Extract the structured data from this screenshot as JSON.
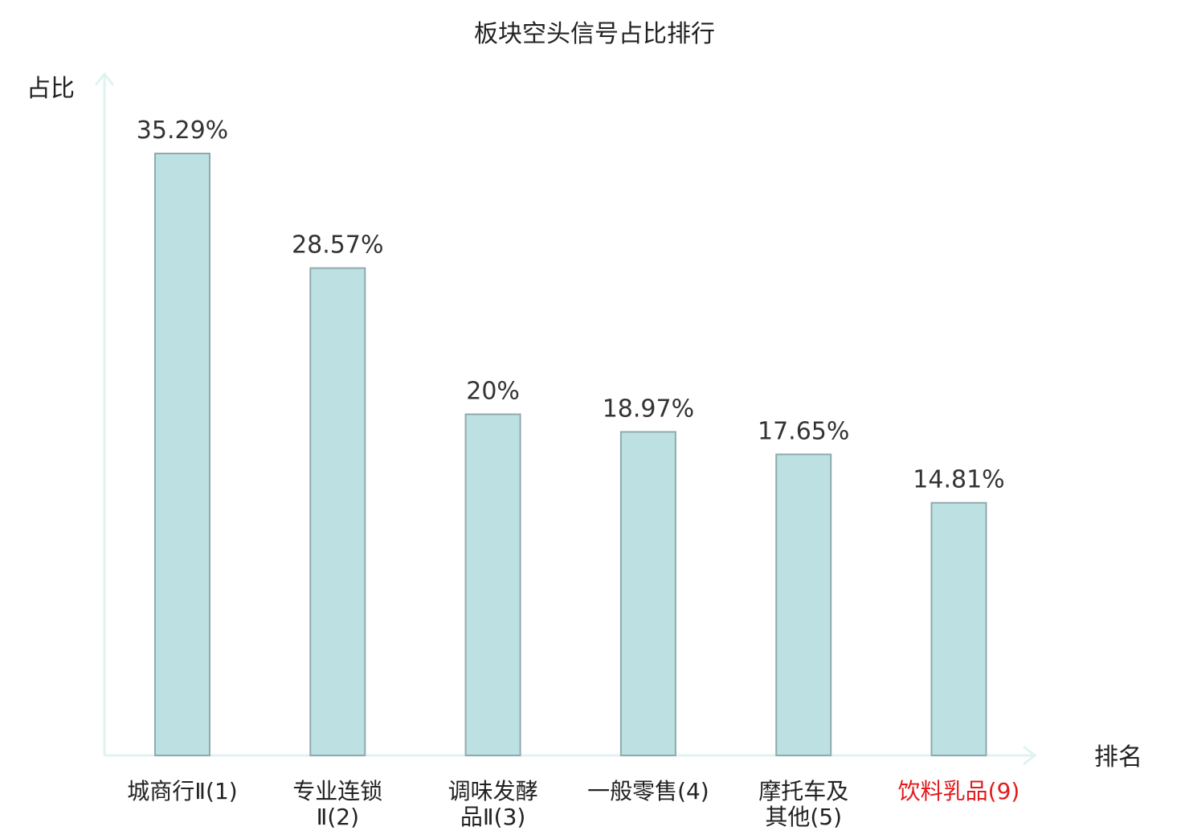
{
  "chart_data": {
    "type": "bar",
    "title": "板块空头信号占比排行",
    "ylabel": "占比",
    "xlabel": "排名",
    "categories": [
      [
        "城商行Ⅱ(1)"
      ],
      [
        "专业连锁",
        "Ⅱ(2)"
      ],
      [
        "调味发酵",
        "品Ⅱ(3)"
      ],
      [
        "一般零售(4)"
      ],
      [
        "摩托车及",
        "其他(5)"
      ],
      [
        "饮料乳品(9)"
      ]
    ],
    "values": [
      35.29,
      28.57,
      20,
      18.97,
      17.65,
      14.81
    ],
    "value_labels": [
      "35.29%",
      "28.57%",
      "20%",
      "18.97%",
      "17.65%",
      "14.81%"
    ],
    "highlight_index": 5,
    "ylim": [
      0,
      40
    ],
    "grid": false,
    "colors": {
      "bar_fill": "#bde0e2",
      "bar_stroke": "#8faaad",
      "axis": "#e0f2f1",
      "text": "#333333",
      "highlight_text": "#e31a1c"
    }
  }
}
